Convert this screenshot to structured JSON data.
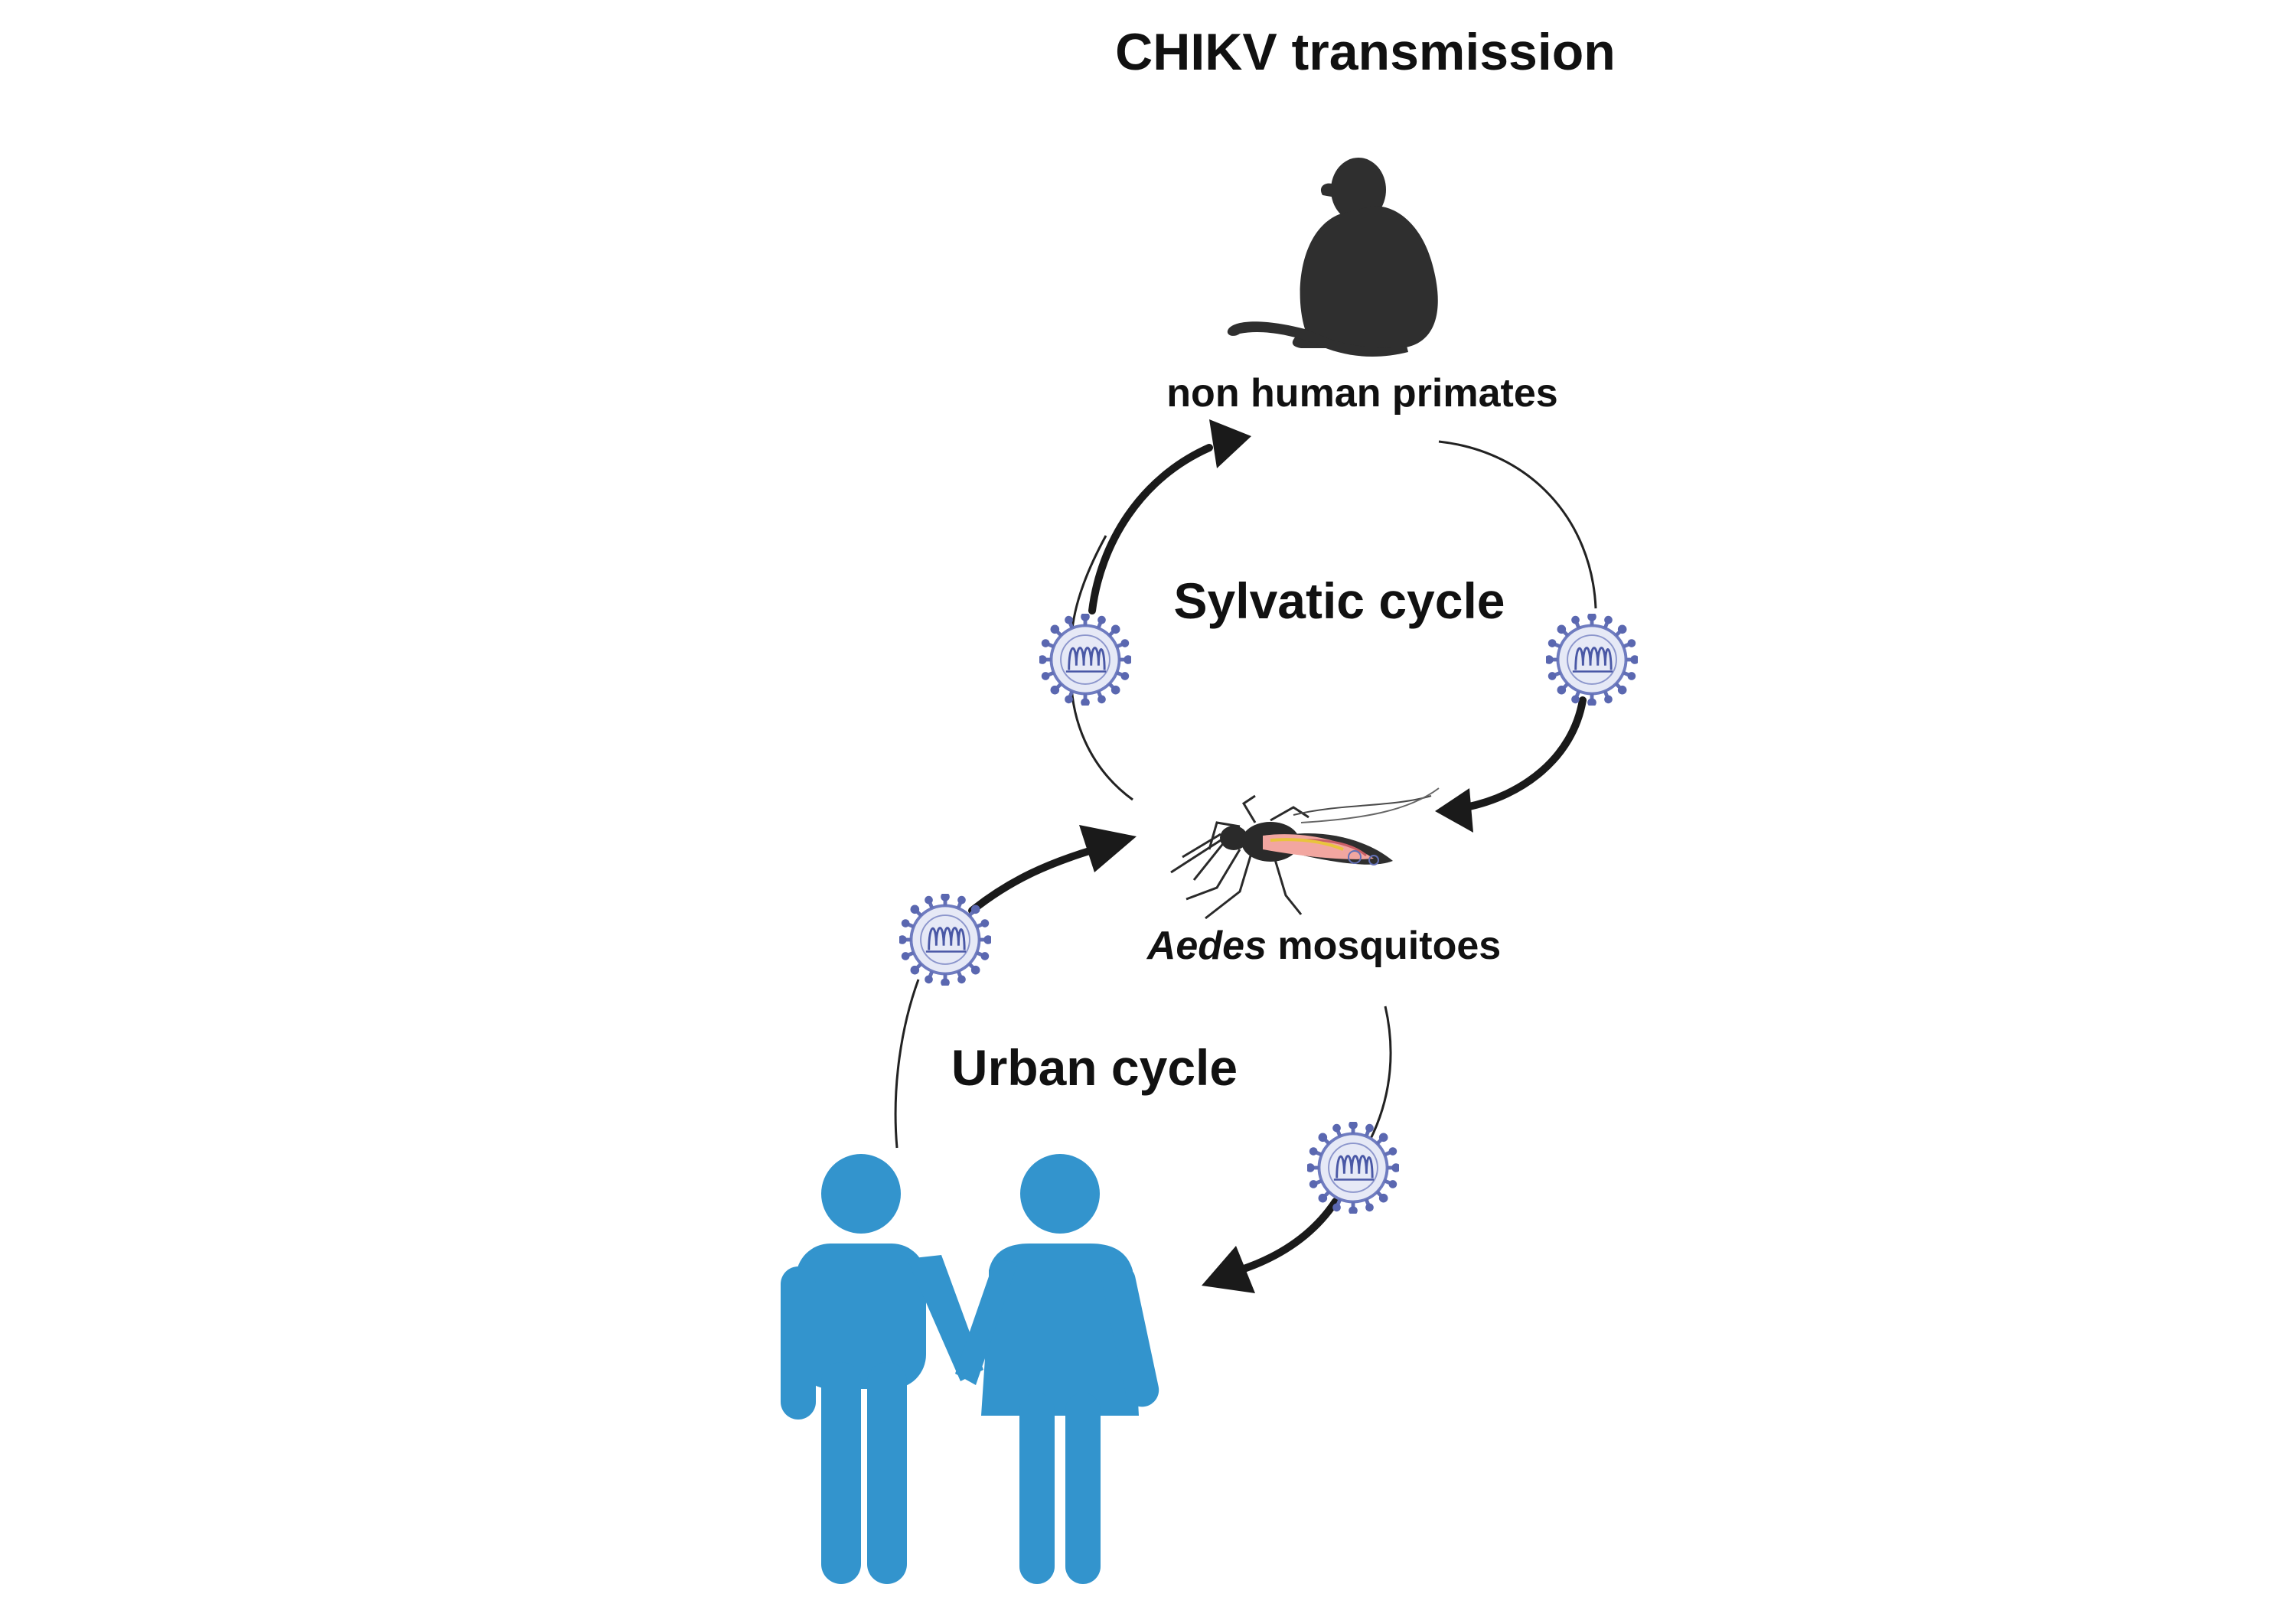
{
  "title": "CHIKV transmission",
  "nodes": {
    "primates": {
      "label": "non human primates",
      "icon": "monkey-silhouette-icon"
    },
    "mosquitoes": {
      "label_italic": "Aedes",
      "label_rest": " mosquitoes",
      "icon": "mosquito-icon"
    },
    "humans": {
      "icon": "couple-silhouette-icon"
    }
  },
  "cycles": {
    "sylvatic": {
      "label": "Sylvatic cycle"
    },
    "urban": {
      "label": "Urban cycle"
    }
  },
  "edges": [
    {
      "from": "mosquitoes",
      "to": "primates",
      "cycle": "sylvatic"
    },
    {
      "from": "primates",
      "to": "mosquitoes",
      "cycle": "sylvatic"
    },
    {
      "from": "humans",
      "to": "mosquitoes",
      "cycle": "urban"
    },
    {
      "from": "mosquitoes",
      "to": "humans",
      "cycle": "urban"
    }
  ],
  "virus_icon": "virus-particle-icon",
  "colors": {
    "human": "#3394cd",
    "primate": "#2f2f2f",
    "arrow": "#1a1a1a",
    "virus_spikes": "#6370b6",
    "virus_body": "#e6e9f6",
    "mosquito_body": "#f2a6a0",
    "text": "#111111"
  }
}
